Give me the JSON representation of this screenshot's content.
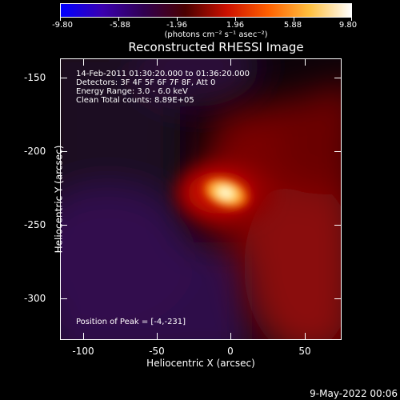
{
  "colorbar": {
    "tick_labels": [
      "-9.80",
      "-5.88",
      "-1.96",
      "1.96",
      "5.88",
      "9.80"
    ],
    "units": "(photons cm⁻² s⁻¹ asec⁻²)",
    "colormap": [
      "#0000ff",
      "#3a00b0",
      "#300050",
      "#4a0000",
      "#cc1000",
      "#ff6000",
      "#ffc040",
      "#ffffff"
    ]
  },
  "title": "Reconstructed RHESSI Image",
  "annotations": {
    "time": "14-Feb-2011 01:30:20.000 to 01:36:20.000",
    "detectors": "Detectors: 3F 4F 5F 6F 7F 8F, Att 0",
    "energy": "Energy Range: 3.0 - 6.0 keV",
    "clean": "Clean    Total counts: 8.89E+05",
    "peak": "Position of Peak = [-4,-231]"
  },
  "axes": {
    "xlabel": "Heliocentric X (arcsec)",
    "ylabel": "Heliocentric Y (arcsec)",
    "xlim": [
      -115,
      75
    ],
    "ylim": [
      -328,
      -138
    ],
    "xticks": [
      "-100",
      "-50",
      "0",
      "50"
    ],
    "yticks": [
      "-150",
      "-200",
      "-250",
      "-300"
    ]
  },
  "image": {
    "peak_position": [
      -4,
      -231
    ],
    "colors": {
      "background": "#000000",
      "purple": "#2e0d4a",
      "red": "#7a0000",
      "hot": "#ffffff"
    }
  },
  "footer": {
    "date": "9-May-2022 00:06"
  }
}
